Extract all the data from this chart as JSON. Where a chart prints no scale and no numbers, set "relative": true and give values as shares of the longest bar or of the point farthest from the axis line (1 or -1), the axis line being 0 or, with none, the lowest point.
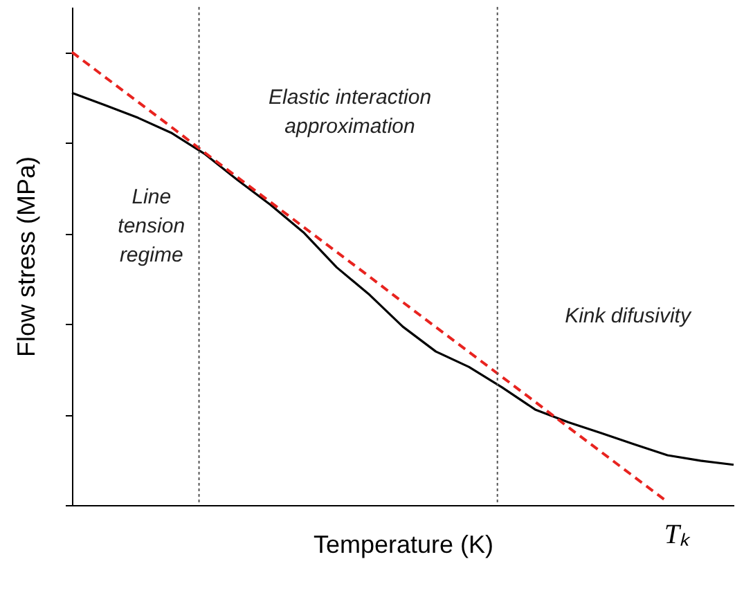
{
  "chart_data": {
    "type": "line",
    "relative": true,
    "xlabel": "Temperature (K)",
    "ylabel": "Flow stress (MPa)",
    "grid": false,
    "categories": [
      null,
      null,
      null,
      null,
      null,
      null,
      null,
      null,
      null,
      null,
      null,
      null,
      null,
      null,
      null,
      null,
      null,
      null,
      null,
      null,
      null
    ],
    "series": [
      {
        "color": "#000000",
        "line_style": "solid",
        "values": [
          0.91,
          0.883,
          0.855,
          0.822,
          0.776,
          0.718,
          0.663,
          0.602,
          0.525,
          0.464,
          0.394,
          0.339,
          0.305,
          0.26,
          0.211,
          0.183,
          0.159,
          0.134,
          0.11,
          0.098,
          0.089
        ]
      },
      {
        "color": "#e8231f",
        "line_style": "dashed",
        "values": [
          1,
          0.945,
          0.89,
          0.835,
          0.779,
          0.724,
          0.669,
          0.614,
          0.559,
          0.504,
          0.448,
          0.393,
          0.338,
          0.283,
          0.228,
          0.172,
          0.117,
          0.062,
          0.007,
          null,
          null
        ]
      }
    ],
    "ref_lines": [
      {
        "axis": "x",
        "color": "#555555",
        "line_style": "dotted"
      },
      {
        "axis": "x",
        "color": "#555555",
        "line_style": "dotted"
      }
    ],
    "annotations": [
      "Line\ntension\nregime",
      "Elastic interaction\napproximation",
      "Kink difusivity",
      "Tₖ"
    ]
  }
}
